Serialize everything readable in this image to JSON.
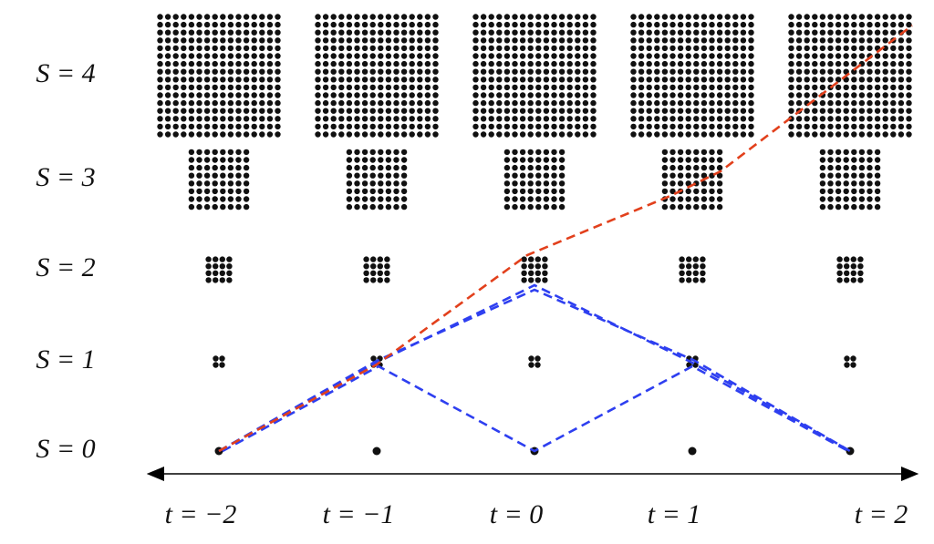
{
  "row_labels": [
    "S = 4",
    "S = 3",
    "S = 2",
    "S = 1",
    "S = 0"
  ],
  "column_labels": [
    "t = −2",
    "t = −1",
    "t = 0",
    "t = 1",
    "t = 2"
  ]
}
